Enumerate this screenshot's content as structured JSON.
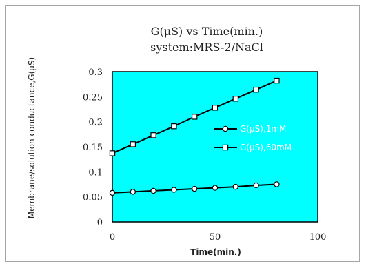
{
  "chart_data": {
    "type": "line",
    "title": "G(μS) vs Time(min.)",
    "subtitle": "system:MRS-2/NaCl",
    "xlabel": "Time(min.)",
    "ylabel": "Membrane/solution conductance,G(μS)",
    "xlim": [
      0,
      100
    ],
    "ylim": [
      0,
      0.3
    ],
    "x_ticks": [
      "0",
      "50",
      "100"
    ],
    "y_ticks": [
      "0",
      "0.05",
      "0.1",
      "0.15",
      "0.2",
      "0.25",
      "0.3"
    ],
    "plot_background": "#00ffff",
    "grid": false,
    "legend_position": "right-middle",
    "x": [
      0,
      10,
      20,
      30,
      40,
      50,
      60,
      70,
      80
    ],
    "series": [
      {
        "name": "G(μS),1mM",
        "marker": "circle",
        "values": [
          0.058,
          0.06,
          0.062,
          0.064,
          0.066,
          0.068,
          0.07,
          0.073,
          0.075
        ]
      },
      {
        "name": "G(μS),60mM",
        "marker": "square",
        "values": [
          0.137,
          0.155,
          0.173,
          0.191,
          0.21,
          0.228,
          0.246,
          0.264,
          0.282
        ]
      }
    ]
  }
}
